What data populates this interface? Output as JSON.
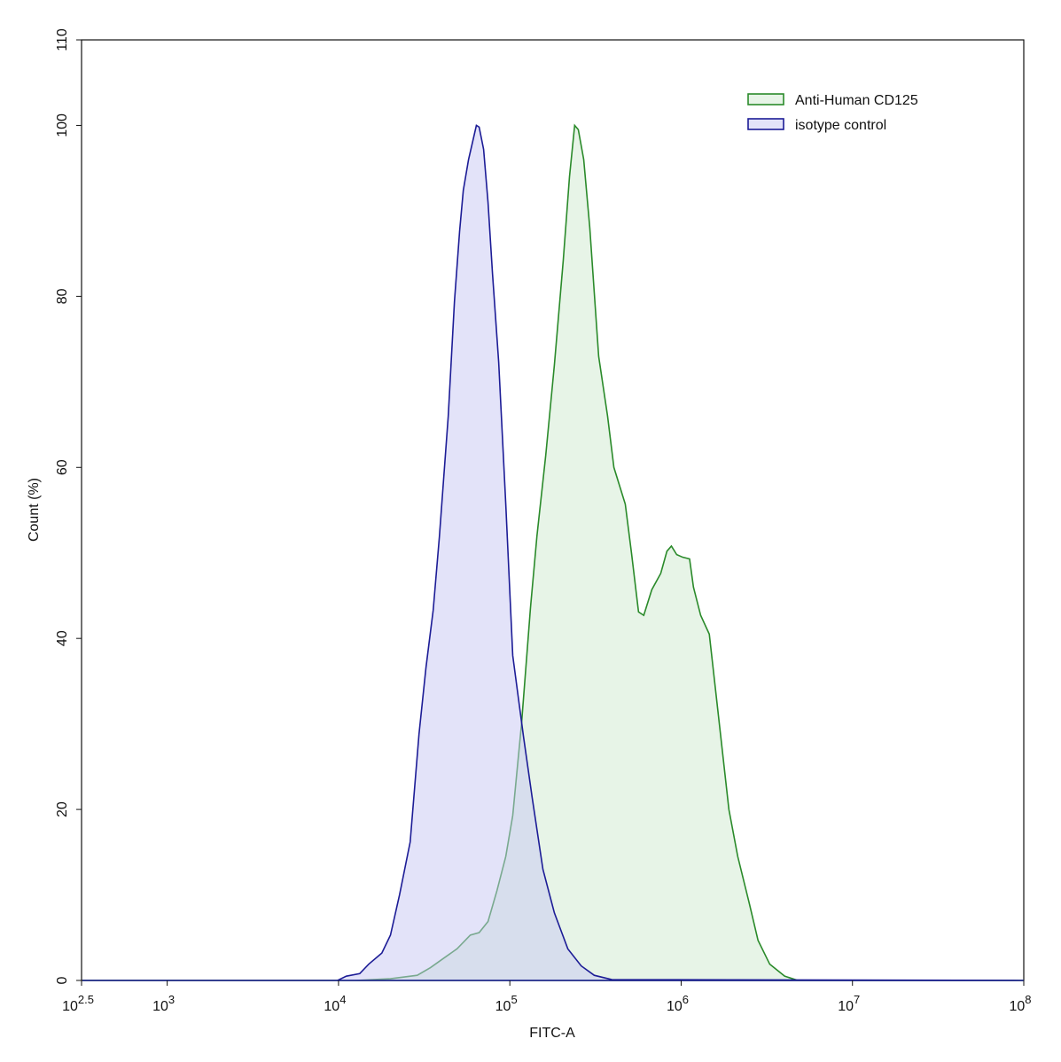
{
  "chart_data": {
    "type": "histogram-overlay",
    "xlabel": "FITC-A",
    "ylabel": "Count  (%)",
    "log_x": true,
    "xlim": [
      316.227766,
      100000000
    ],
    "ylim": [
      0,
      110
    ],
    "xticks": [
      {
        "value": 316.227766,
        "label": [
          "10",
          "2.5"
        ]
      },
      {
        "value": 1000,
        "label": [
          "10",
          "3"
        ]
      },
      {
        "value": 10000,
        "label": [
          "10",
          "4"
        ]
      },
      {
        "value": 100000,
        "label": [
          "10",
          "5"
        ]
      },
      {
        "value": 1000000,
        "label": [
          "10",
          "6"
        ]
      },
      {
        "value": 10000000,
        "label": [
          "10",
          "7"
        ]
      },
      {
        "value": 100000000,
        "label": [
          "10",
          "8"
        ]
      }
    ],
    "yticks": [
      0,
      20,
      40,
      60,
      80,
      100,
      110
    ],
    "legend": "top-right",
    "series": [
      {
        "name": "Anti-Human CD125",
        "color": "#2a8a2a",
        "fill": "#cfeacf",
        "x": [
          320,
          12500,
          20100,
          28800,
          34400,
          41100,
          49200,
          58800,
          66200,
          74600,
          84100,
          94700,
          104000,
          117000,
          132000,
          144000,
          162000,
          182000,
          205000,
          223000,
          239000,
          251000,
          270000,
          293000,
          330000,
          372000,
          405000,
          472000,
          513000,
          564000,
          605000,
          674000,
          760000,
          826000,
          877000,
          942000,
          1020000,
          1120000,
          1180000,
          1300000,
          1460000,
          1650000,
          1900000,
          2140000,
          2500000,
          2810000,
          3290000,
          4020000,
          4810000,
          100000000
        ],
        "values": [
          0,
          0,
          0.2,
          0.6,
          1.5,
          2.6,
          3.7,
          5.3,
          5.6,
          6.9,
          10.5,
          14.5,
          19.3,
          30,
          43.6,
          52,
          61.4,
          72,
          84.2,
          94,
          100,
          99.5,
          96,
          88,
          73,
          66,
          60,
          55.7,
          50,
          43.1,
          42.7,
          45.7,
          47.6,
          50.2,
          50.8,
          49.8,
          49.5,
          49.3,
          46,
          42.7,
          40.5,
          31,
          20,
          14.5,
          9,
          4.7,
          1.9,
          0.5,
          0,
          0
        ]
      },
      {
        "name": "isotype control",
        "color": "#1c1c96",
        "fill": "#c8c8f4",
        "x": [
          320,
          9860,
          11100,
          13300,
          15000,
          17900,
          20100,
          22700,
          26200,
          29500,
          32400,
          35700,
          38800,
          43700,
          47500,
          50900,
          53500,
          57400,
          63800,
          66200,
          70300,
          74600,
          79200,
          86100,
          94700,
          104000,
          120000,
          135000,
          156000,
          182000,
          218000,
          261000,
          311000,
          394000,
          100000000
        ],
        "values": [
          0,
          0,
          0.5,
          0.8,
          1.9,
          3.2,
          5.3,
          10,
          16.2,
          28.8,
          36.6,
          43.3,
          51.9,
          66,
          79.4,
          87.6,
          92.4,
          96,
          100,
          99.8,
          97.2,
          91,
          82.7,
          72.3,
          55.7,
          38,
          28.6,
          21.4,
          13,
          7.9,
          3.7,
          1.7,
          0.6,
          0.1,
          0
        ]
      }
    ]
  }
}
